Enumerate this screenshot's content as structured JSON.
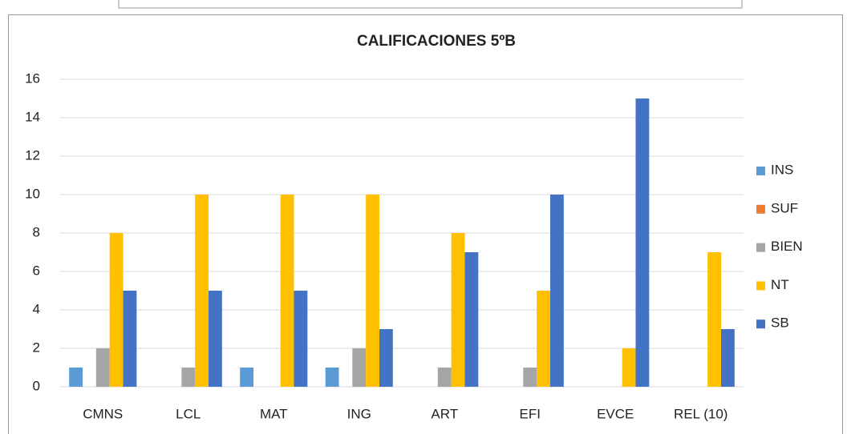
{
  "chart_data": {
    "type": "bar",
    "title": "CALIFICACIONES 5ºB",
    "categories": [
      "CMNS",
      "LCL",
      "MAT",
      "ING",
      "ART",
      "EFI",
      "EVCE",
      "REL (10)"
    ],
    "series": [
      {
        "name": "INS",
        "color": "#5b9bd5",
        "values": [
          1,
          0,
          1,
          1,
          0,
          0,
          0,
          0
        ]
      },
      {
        "name": "SUF",
        "color": "#ed7d31",
        "values": [
          0,
          0,
          0,
          0,
          0,
          0,
          0,
          0
        ]
      },
      {
        "name": "BIEN",
        "color": "#a5a5a5",
        "values": [
          2,
          1,
          0,
          2,
          1,
          1,
          0,
          0
        ]
      },
      {
        "name": "NT",
        "color": "#ffc000",
        "values": [
          8,
          10,
          10,
          10,
          8,
          5,
          2,
          7
        ]
      },
      {
        "name": "SB",
        "color": "#4472c4",
        "values": [
          5,
          5,
          5,
          3,
          7,
          10,
          15,
          3
        ]
      }
    ],
    "ylim": [
      0,
      16
    ],
    "yticks": [
      0,
      2,
      4,
      6,
      8,
      10,
      12,
      14,
      16
    ],
    "grid": true,
    "legend": "right"
  }
}
